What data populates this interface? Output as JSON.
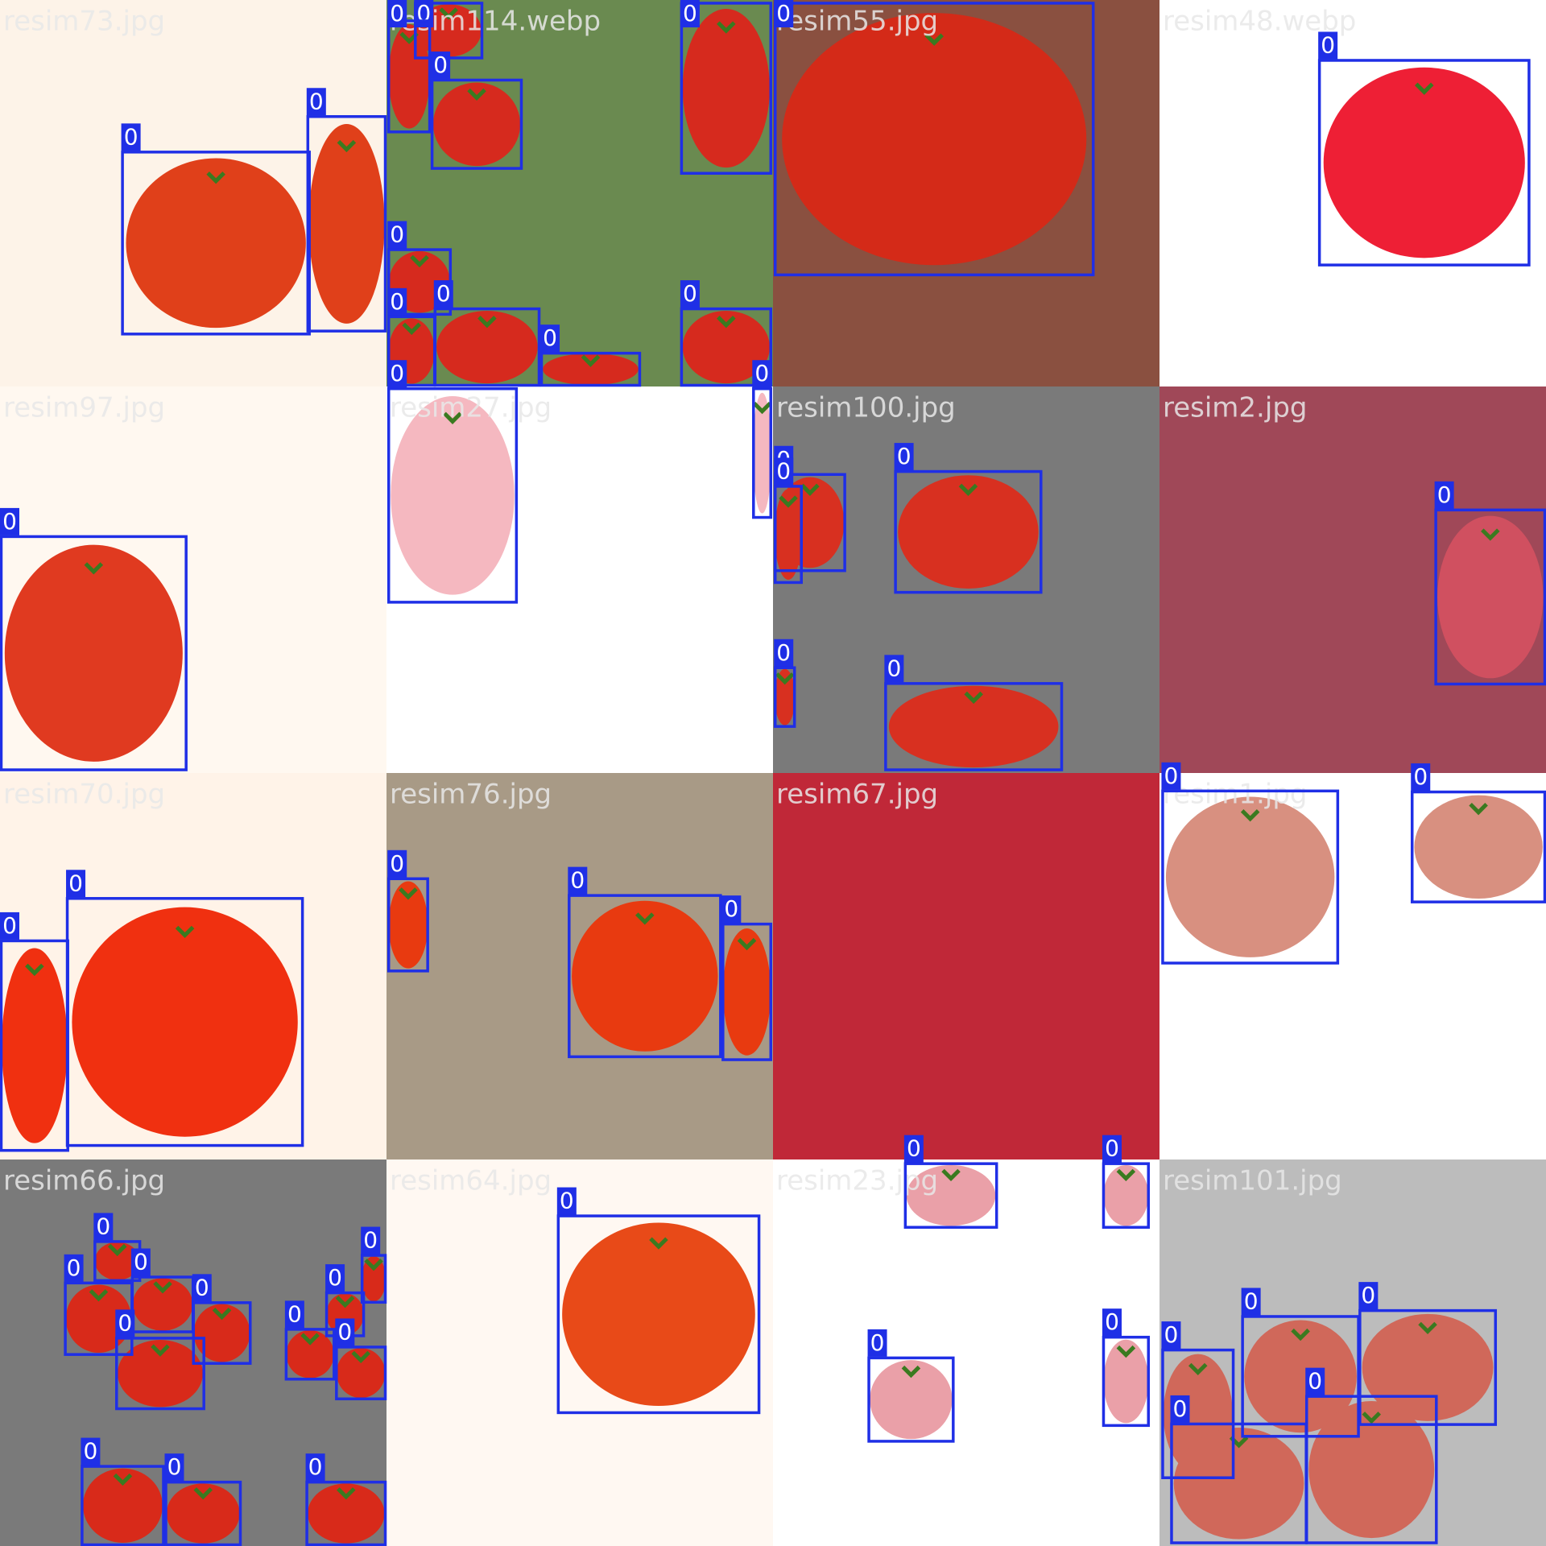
{
  "tiles": [
    {
      "filename": "resim73.jpg",
      "boxes": [
        "0",
        "0"
      ]
    },
    {
      "filename": "resim114.webp",
      "boxes": [
        "0",
        "0",
        "0",
        "0",
        "0",
        "0",
        "0",
        "0",
        "0"
      ]
    },
    {
      "filename": "resim55.jpg",
      "boxes": [
        "0"
      ]
    },
    {
      "filename": "resim48.webp",
      "boxes": [
        "0"
      ]
    },
    {
      "filename": "resim97.jpg",
      "boxes": [
        "0"
      ]
    },
    {
      "filename": "resim27.jpg",
      "boxes": [
        "0",
        "0"
      ]
    },
    {
      "filename": "resim100.jpg",
      "boxes": [
        "0",
        "0",
        "0",
        "0",
        "0"
      ]
    },
    {
      "filename": "resim2.jpg",
      "boxes": [
        "0"
      ]
    },
    {
      "filename": "resim70.jpg",
      "boxes": [
        "0",
        "0"
      ]
    },
    {
      "filename": "resim76.jpg",
      "boxes": [
        "0",
        "0",
        "0"
      ]
    },
    {
      "filename": "resim67.jpg",
      "boxes": []
    },
    {
      "filename": "resim1.jpg",
      "boxes": [
        "0",
        "0"
      ]
    },
    {
      "filename": "resim66.jpg",
      "boxes": [
        "0",
        "0",
        "0",
        "0",
        "0",
        "0",
        "0",
        "0",
        "0",
        "0",
        "0",
        "0"
      ]
    },
    {
      "filename": "resim64.jpg",
      "boxes": [
        "0"
      ]
    },
    {
      "filename": "resim23.jpg",
      "boxes": [
        "0",
        "0",
        "0",
        "0"
      ]
    },
    {
      "filename": "resim101.jpg",
      "boxes": [
        "0",
        "0",
        "0",
        "0",
        "0"
      ]
    }
  ]
}
